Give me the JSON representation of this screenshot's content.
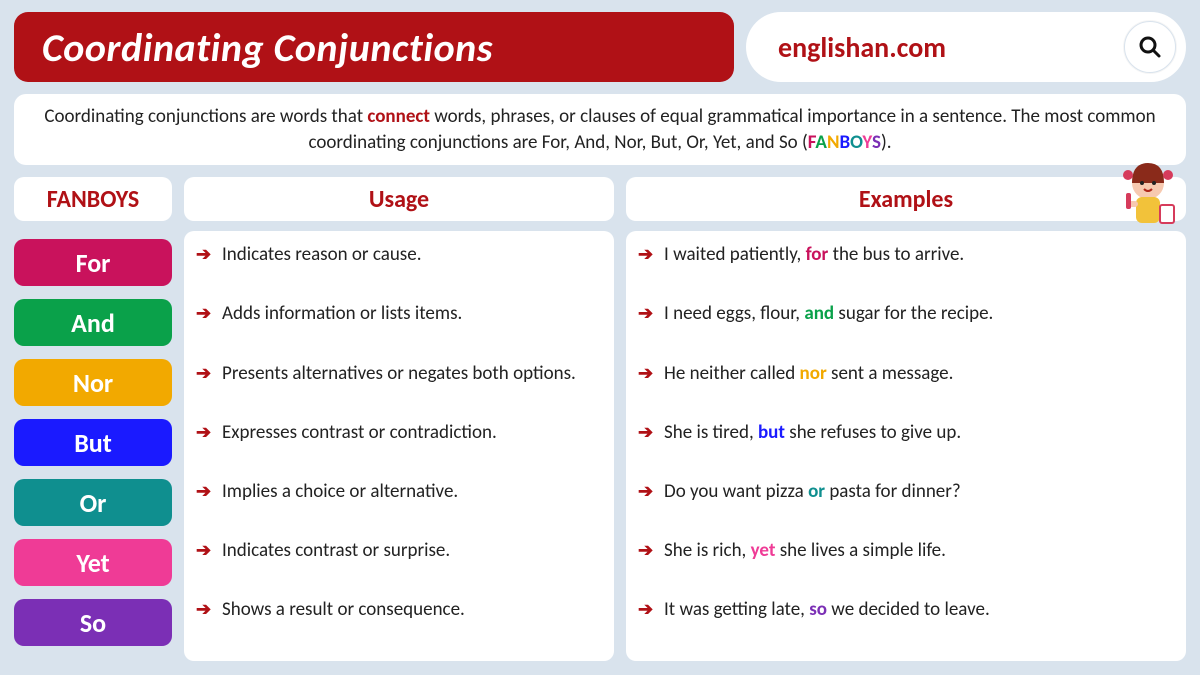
{
  "header": {
    "title": "Coordinating Conjunctions",
    "site": "englishan.com"
  },
  "intro": {
    "pre": "Coordinating conjunctions are words that ",
    "highlight": "connect",
    "highlight_color": "#b01116",
    "post": " words, phrases, or clauses of equal grammatical importance in a sentence. The most common coordinating conjunctions are For, And, Nor, But, Or, Yet, and So (",
    "acronym": [
      {
        "l": "F",
        "c": "#c9125c"
      },
      {
        "l": "A",
        "c": "#0aa14a"
      },
      {
        "l": "N",
        "c": "#f2a900"
      },
      {
        "l": "B",
        "c": "#1a1aff"
      },
      {
        "l": "O",
        "c": "#0f8f8f"
      },
      {
        "l": "Y",
        "c": "#ef3b96"
      },
      {
        "l": "S",
        "c": "#7b2fb5"
      }
    ],
    "close": ")."
  },
  "columns": {
    "fanboys": "FANBOYS",
    "usage": "Usage",
    "examples": "Examples"
  },
  "rows": [
    {
      "word": "For",
      "color": "#c9125c",
      "usage": "Indicates reason or cause.",
      "example_pre": "I waited patiently, ",
      "example_hl": "for",
      "example_post": " the bus to arrive."
    },
    {
      "word": "And",
      "color": "#0aa14a",
      "usage": "Adds information or lists items.",
      "example_pre": "I need eggs, flour, ",
      "example_hl": "and",
      "example_post": " sugar for the recipe."
    },
    {
      "word": "Nor",
      "color": "#f2a900",
      "usage": "Presents alternatives or negates both options.",
      "example_pre": "He neither called ",
      "example_hl": "nor",
      "example_post": " sent a message."
    },
    {
      "word": "But",
      "color": "#1a1aff",
      "usage": "Expresses contrast or contradiction.",
      "example_pre": "She is tired, ",
      "example_hl": "but",
      "example_post": " she refuses to give up."
    },
    {
      "word": "Or",
      "color": "#0f8f8f",
      "usage": "Implies a choice or alternative.",
      "example_pre": "Do you want pizza ",
      "example_hl": "or",
      "example_post": " pasta for dinner?"
    },
    {
      "word": "Yet",
      "color": "#ef3b96",
      "usage": "Indicates contrast or surprise.",
      "example_pre": "She is rich, ",
      "example_hl": "yet",
      "example_post": " she lives a simple life."
    },
    {
      "word": "So",
      "color": "#7b2fb5",
      "usage": "Shows a result or consequence.",
      "example_pre": "It was getting late, ",
      "example_hl": "so",
      "example_post": " we decided to leave."
    }
  ],
  "colors": {
    "brand_red": "#b01116",
    "bg": "#d9e3ed",
    "white": "#ffffff",
    "text": "#222222"
  }
}
